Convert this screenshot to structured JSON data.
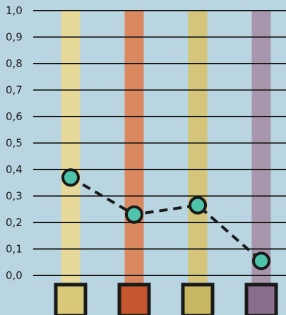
{
  "chart_data": {
    "type": "line",
    "title": "",
    "xlabel": "",
    "ylabel": "",
    "ylim": [
      0,
      1.0
    ],
    "yticks": [
      "0,0",
      "0,1",
      "0,2",
      "0,3",
      "0,4",
      "0,5",
      "0,6",
      "0,7",
      "0,8",
      "0,9",
      "1,0"
    ],
    "grid": true,
    "categories": [
      {
        "marker_color": "#d8c87a",
        "bar_color": "#e6d99a"
      },
      {
        "marker_color": "#c4572d",
        "bar_color": "#d98860"
      },
      {
        "marker_color": "#c6b763",
        "bar_color": "#d4c57a"
      },
      {
        "marker_color": "#8a6e8e",
        "bar_color": "#a897ac"
      }
    ],
    "series": [
      {
        "values": [
          0.37,
          0.23,
          0.265,
          0.055
        ],
        "line_style": "dashed",
        "point_color": "#4fc3aa"
      }
    ],
    "background_color": "#b9d5e2",
    "line_color": "#1a1a1a"
  }
}
